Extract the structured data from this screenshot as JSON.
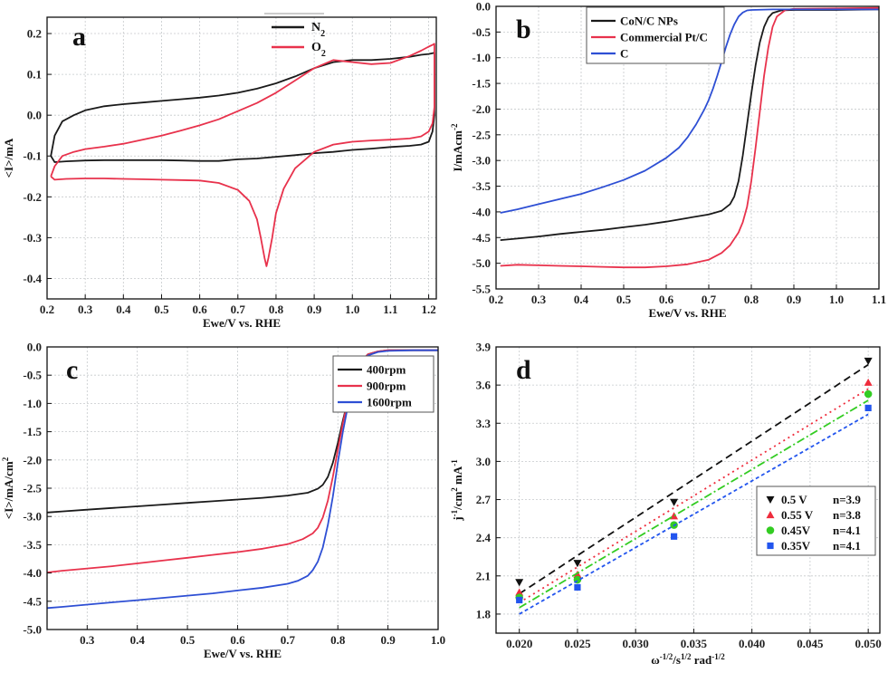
{
  "chart_data": [
    {
      "panel": "a",
      "type": "line",
      "xlabel": "Ewe/V vs. RHE",
      "ylabel": "<I>/mA",
      "xlim": [
        0.2,
        1.22
      ],
      "ylim": [
        -0.45,
        0.24
      ],
      "xticks": [
        0.2,
        0.3,
        0.4,
        0.5,
        0.6,
        0.7,
        0.8,
        0.9,
        1.0,
        1.1,
        1.2
      ],
      "yticks": [
        -0.4,
        -0.3,
        -0.2,
        -0.1,
        0.0,
        0.1,
        0.2
      ],
      "xtick_labels": [
        "0.2",
        "0.3",
        "0.4",
        "0.5",
        "0.6",
        "0.7",
        "0.8",
        "0.9",
        "1.0",
        "1.1",
        "1.2"
      ],
      "ytick_labels": [
        "-0.4",
        "-0.3",
        "-0.2",
        "-0.1",
        "0.0",
        "0.1",
        "0.2"
      ],
      "grid": true,
      "legend_position": "top-center",
      "series": [
        {
          "name": "N2",
          "label_main": "N",
          "label_sub": "2",
          "color": "#1a1a1a",
          "x": [
            0.21,
            0.22,
            0.24,
            0.27,
            0.3,
            0.35,
            0.4,
            0.45,
            0.5,
            0.55,
            0.6,
            0.65,
            0.7,
            0.75,
            0.8,
            0.85,
            0.9,
            0.95,
            1.0,
            1.05,
            1.1,
            1.15,
            1.18,
            1.2,
            1.21,
            1.215,
            1.215,
            1.21,
            1.2,
            1.18,
            1.15,
            1.1,
            1.05,
            1.0,
            0.95,
            0.9,
            0.85,
            0.8,
            0.75,
            0.7,
            0.65,
            0.6,
            0.55,
            0.5,
            0.45,
            0.4,
            0.35,
            0.3,
            0.25,
            0.22,
            0.21
          ],
          "y": [
            -0.1,
            -0.05,
            -0.015,
            0.0,
            0.012,
            0.022,
            0.027,
            0.031,
            0.035,
            0.039,
            0.043,
            0.048,
            0.055,
            0.065,
            0.078,
            0.095,
            0.115,
            0.13,
            0.135,
            0.135,
            0.138,
            0.143,
            0.148,
            0.15,
            0.152,
            0.153,
            0.0,
            -0.04,
            -0.065,
            -0.072,
            -0.075,
            -0.078,
            -0.082,
            -0.085,
            -0.09,
            -0.093,
            -0.098,
            -0.102,
            -0.106,
            -0.108,
            -0.112,
            -0.112,
            -0.111,
            -0.11,
            -0.11,
            -0.11,
            -0.11,
            -0.111,
            -0.113,
            -0.115,
            -0.1
          ]
        },
        {
          "name": "O2",
          "label_main": "O",
          "label_sub": "2",
          "color": "#e8324c",
          "x": [
            0.21,
            0.22,
            0.24,
            0.27,
            0.3,
            0.35,
            0.4,
            0.45,
            0.5,
            0.55,
            0.6,
            0.65,
            0.7,
            0.75,
            0.8,
            0.85,
            0.9,
            0.95,
            1.0,
            1.05,
            1.1,
            1.15,
            1.18,
            1.2,
            1.21,
            1.215,
            1.215,
            1.21,
            1.2,
            1.18,
            1.15,
            1.1,
            1.05,
            1.0,
            0.95,
            0.9,
            0.85,
            0.82,
            0.8,
            0.79,
            0.78,
            0.775,
            0.77,
            0.76,
            0.75,
            0.73,
            0.7,
            0.65,
            0.6,
            0.55,
            0.5,
            0.45,
            0.4,
            0.35,
            0.3,
            0.25,
            0.22,
            0.21
          ],
          "y": [
            -0.15,
            -0.125,
            -0.1,
            -0.09,
            -0.083,
            -0.077,
            -0.07,
            -0.06,
            -0.05,
            -0.038,
            -0.025,
            -0.01,
            0.01,
            0.03,
            0.055,
            0.085,
            0.115,
            0.135,
            0.13,
            0.125,
            0.128,
            0.145,
            0.158,
            0.168,
            0.172,
            0.175,
            0.02,
            -0.02,
            -0.04,
            -0.052,
            -0.057,
            -0.06,
            -0.062,
            -0.065,
            -0.072,
            -0.09,
            -0.13,
            -0.18,
            -0.24,
            -0.3,
            -0.35,
            -0.37,
            -0.35,
            -0.3,
            -0.255,
            -0.21,
            -0.183,
            -0.166,
            -0.16,
            -0.159,
            -0.158,
            -0.157,
            -0.156,
            -0.155,
            -0.155,
            -0.156,
            -0.158,
            -0.15
          ]
        }
      ]
    },
    {
      "panel": "b",
      "type": "line",
      "xlabel": "Ewe/V vs. RHE",
      "ylabel": "I/mAcm-2",
      "ylabel_main": "I/mAcm",
      "ylabel_sup": "-2",
      "xlim": [
        0.2,
        1.1
      ],
      "ylim": [
        -5.5,
        0.0
      ],
      "xticks": [
        0.2,
        0.3,
        0.4,
        0.5,
        0.6,
        0.7,
        0.8,
        0.9,
        1.0,
        1.1
      ],
      "yticks": [
        -5.5,
        -5.0,
        -4.5,
        -4.0,
        -3.5,
        -3.0,
        -2.5,
        -2.0,
        -1.5,
        -1.0,
        -0.5,
        0.0
      ],
      "xtick_labels": [
        "0.2",
        "0.3",
        "0.4",
        "0.5",
        "0.6",
        "0.7",
        "0.8",
        "0.9",
        "1.0",
        "1.1"
      ],
      "ytick_labels": [
        "-5.5",
        "-5.0",
        "-4.5",
        "-4.0",
        "-3.5",
        "-3.0",
        "-2.5",
        "-2.0",
        "-1.5",
        "-1.0",
        "-0.5",
        "0.0"
      ],
      "grid": true,
      "legend_position": "top-left",
      "series": [
        {
          "name": "CoN/C NPs",
          "color": "#1a1a1a",
          "x": [
            0.21,
            0.25,
            0.3,
            0.35,
            0.4,
            0.45,
            0.5,
            0.55,
            0.6,
            0.65,
            0.7,
            0.73,
            0.75,
            0.76,
            0.77,
            0.78,
            0.79,
            0.8,
            0.81,
            0.82,
            0.83,
            0.84,
            0.85,
            0.87,
            0.9,
            1.0,
            1.1
          ],
          "y": [
            -4.55,
            -4.52,
            -4.48,
            -4.43,
            -4.39,
            -4.35,
            -4.3,
            -4.25,
            -4.19,
            -4.12,
            -4.05,
            -3.98,
            -3.85,
            -3.7,
            -3.4,
            -2.9,
            -2.3,
            -1.7,
            -1.15,
            -0.7,
            -0.4,
            -0.22,
            -0.13,
            -0.08,
            -0.07,
            -0.07,
            -0.06
          ]
        },
        {
          "name": "Commercial Pt/C",
          "color": "#e8324c",
          "x": [
            0.21,
            0.25,
            0.3,
            0.35,
            0.4,
            0.45,
            0.5,
            0.55,
            0.6,
            0.65,
            0.7,
            0.73,
            0.75,
            0.77,
            0.78,
            0.79,
            0.8,
            0.81,
            0.82,
            0.83,
            0.84,
            0.85,
            0.86,
            0.88,
            0.9,
            1.0,
            1.1
          ],
          "y": [
            -5.05,
            -5.03,
            -5.04,
            -5.05,
            -5.06,
            -5.07,
            -5.08,
            -5.08,
            -5.06,
            -5.02,
            -4.93,
            -4.8,
            -4.65,
            -4.4,
            -4.2,
            -3.9,
            -3.4,
            -2.75,
            -2.05,
            -1.35,
            -0.8,
            -0.4,
            -0.2,
            -0.07,
            -0.05,
            -0.04,
            -0.03
          ]
        },
        {
          "name": "C",
          "color": "#2e4fd4",
          "x": [
            0.21,
            0.25,
            0.3,
            0.35,
            0.4,
            0.45,
            0.5,
            0.55,
            0.6,
            0.63,
            0.65,
            0.67,
            0.69,
            0.7,
            0.71,
            0.72,
            0.73,
            0.74,
            0.75,
            0.76,
            0.77,
            0.78,
            0.79,
            0.8,
            0.85,
            0.9,
            1.0,
            1.1
          ],
          "y": [
            -4.02,
            -3.95,
            -3.85,
            -3.75,
            -3.65,
            -3.52,
            -3.38,
            -3.2,
            -2.95,
            -2.75,
            -2.55,
            -2.3,
            -2.0,
            -1.82,
            -1.6,
            -1.35,
            -1.08,
            -0.8,
            -0.55,
            -0.35,
            -0.2,
            -0.12,
            -0.08,
            -0.07,
            -0.06,
            -0.06,
            -0.06,
            -0.06
          ]
        }
      ]
    },
    {
      "panel": "c",
      "type": "line",
      "xlabel": "Ewe/V vs. RHE",
      "ylabel": "<I>/mA/cm2",
      "ylabel_main": "<I>/mA/cm",
      "ylabel_sup": "2",
      "xlim": [
        0.22,
        1.0
      ],
      "ylim": [
        -5.0,
        0.0
      ],
      "xticks": [
        0.3,
        0.4,
        0.5,
        0.6,
        0.7,
        0.8,
        0.9,
        1.0
      ],
      "yticks": [
        -5.0,
        -4.5,
        -4.0,
        -3.5,
        -3.0,
        -2.5,
        -2.0,
        -1.5,
        -1.0,
        -0.5,
        0.0
      ],
      "xtick_labels": [
        "0.3",
        "0.4",
        "0.5",
        "0.6",
        "0.7",
        "0.8",
        "0.9",
        "1.0"
      ],
      "ytick_labels": [
        "-5.0",
        "-4.5",
        "-4.0",
        "-3.5",
        "-3.0",
        "-2.5",
        "-2.0",
        "-1.5",
        "-1.0",
        "-0.5",
        "0.0"
      ],
      "grid": true,
      "legend_position": "top-right",
      "series": [
        {
          "name": "400rpm",
          "color": "#1a1a1a",
          "x": [
            0.22,
            0.25,
            0.3,
            0.35,
            0.4,
            0.45,
            0.5,
            0.55,
            0.6,
            0.65,
            0.7,
            0.74,
            0.76,
            0.77,
            0.78,
            0.79,
            0.8,
            0.81,
            0.82,
            0.83,
            0.84,
            0.85,
            0.86,
            0.88,
            0.9,
            0.95,
            1.0
          ],
          "y": [
            -2.93,
            -2.91,
            -2.88,
            -2.85,
            -2.82,
            -2.79,
            -2.76,
            -2.73,
            -2.7,
            -2.67,
            -2.63,
            -2.58,
            -2.51,
            -2.44,
            -2.3,
            -2.05,
            -1.7,
            -1.3,
            -0.95,
            -0.62,
            -0.38,
            -0.22,
            -0.13,
            -0.08,
            -0.06,
            -0.06,
            -0.06
          ]
        },
        {
          "name": "900rpm",
          "color": "#e8324c",
          "x": [
            0.22,
            0.25,
            0.3,
            0.35,
            0.4,
            0.45,
            0.5,
            0.55,
            0.6,
            0.65,
            0.7,
            0.73,
            0.75,
            0.76,
            0.77,
            0.78,
            0.79,
            0.8,
            0.81,
            0.82,
            0.83,
            0.84,
            0.85,
            0.86,
            0.88,
            0.9,
            0.95,
            1.0
          ],
          "y": [
            -3.99,
            -3.96,
            -3.92,
            -3.88,
            -3.83,
            -3.78,
            -3.73,
            -3.68,
            -3.63,
            -3.57,
            -3.49,
            -3.4,
            -3.3,
            -3.2,
            -3.02,
            -2.72,
            -2.3,
            -1.82,
            -1.35,
            -0.95,
            -0.62,
            -0.38,
            -0.22,
            -0.13,
            -0.08,
            -0.06,
            -0.06,
            -0.06
          ]
        },
        {
          "name": "1600rpm",
          "color": "#2e4fd4",
          "x": [
            0.22,
            0.25,
            0.3,
            0.35,
            0.4,
            0.45,
            0.5,
            0.55,
            0.6,
            0.65,
            0.7,
            0.72,
            0.74,
            0.75,
            0.76,
            0.77,
            0.78,
            0.79,
            0.8,
            0.81,
            0.82,
            0.83,
            0.84,
            0.85,
            0.86,
            0.88,
            0.9,
            0.95,
            1.0
          ],
          "y": [
            -4.62,
            -4.6,
            -4.56,
            -4.52,
            -4.48,
            -4.44,
            -4.4,
            -4.36,
            -4.31,
            -4.26,
            -4.19,
            -4.14,
            -4.05,
            -3.95,
            -3.8,
            -3.55,
            -3.15,
            -2.65,
            -2.05,
            -1.5,
            -1.05,
            -0.68,
            -0.42,
            -0.25,
            -0.15,
            -0.09,
            -0.07,
            -0.06,
            -0.06
          ]
        }
      ]
    },
    {
      "panel": "d",
      "type": "scatter",
      "xlabel": "ω-1/2/s1/2 rad-1/2",
      "xlabel_parts": [
        "ω",
        "-1/2",
        "/s",
        "1/2",
        " rad",
        "-1/2"
      ],
      "ylabel": "j-1/cm2 mA-1",
      "ylabel_parts": [
        "j",
        "-1",
        "/cm",
        "2",
        " mA",
        "-1"
      ],
      "xlim": [
        0.018,
        0.051
      ],
      "ylim": [
        1.65,
        3.9
      ],
      "xticks": [
        0.02,
        0.025,
        0.03,
        0.035,
        0.04,
        0.045,
        0.05
      ],
      "yticks": [
        1.8,
        2.1,
        2.4,
        2.7,
        3.0,
        3.3,
        3.6,
        3.9
      ],
      "xtick_labels": [
        "0.020",
        "0.025",
        "0.030",
        "0.035",
        "0.040",
        "0.045",
        "0.050"
      ],
      "ytick_labels": [
        "1.8",
        "2.1",
        "2.4",
        "2.7",
        "3.0",
        "3.3",
        "3.6",
        "3.9"
      ],
      "grid": true,
      "legend_position": "bottom-right",
      "series": [
        {
          "name": "0.5 V",
          "n_label": "n=3.9",
          "color": "#111111",
          "marker": "triangle-down",
          "dash": "8 5",
          "x": [
            0.02,
            0.025,
            0.0333,
            0.05
          ],
          "y": [
            2.05,
            2.2,
            2.68,
            3.79
          ],
          "fit": [
            [
              0.02,
              1.96
            ],
            [
              0.05,
              3.76
            ]
          ]
        },
        {
          "name": "0.55 V",
          "n_label": "n=3.8",
          "color": "#ee2c3c",
          "marker": "triangle-up",
          "dash": "2 4",
          "x": [
            0.02,
            0.025,
            0.0333,
            0.05
          ],
          "y": [
            1.97,
            2.11,
            2.57,
            3.62
          ],
          "fit": [
            [
              0.02,
              1.89
            ],
            [
              0.05,
              3.57
            ]
          ]
        },
        {
          "name": "0.45V",
          "n_label": "n=4.1",
          "color": "#33cc22",
          "marker": "circle",
          "dash": "9 3 2 3",
          "x": [
            0.02,
            0.025,
            0.0333,
            0.05
          ],
          "y": [
            1.93,
            2.07,
            2.5,
            3.53
          ],
          "fit": [
            [
              0.02,
              1.85
            ],
            [
              0.05,
              3.48
            ]
          ]
        },
        {
          "name": "0.35V",
          "n_label": "n=4.1",
          "color": "#2255ee",
          "marker": "square",
          "dash": "4 3",
          "x": [
            0.02,
            0.025,
            0.0333,
            0.05
          ],
          "y": [
            1.91,
            2.01,
            2.41,
            3.42
          ],
          "fit": [
            [
              0.02,
              1.8
            ],
            [
              0.05,
              3.37
            ]
          ]
        }
      ]
    }
  ]
}
